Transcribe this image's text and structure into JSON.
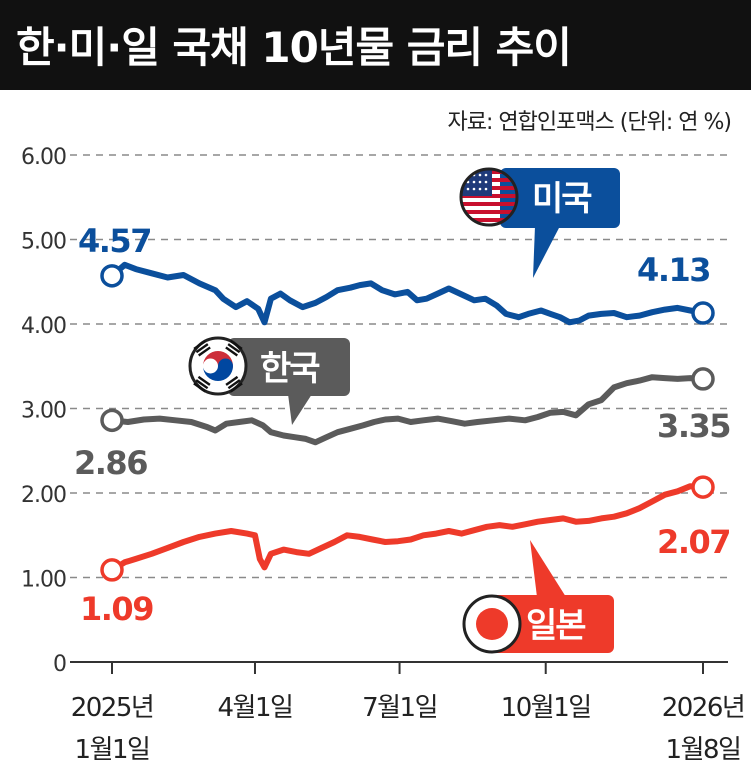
{
  "title": "한·미·일 국채 10년물 금리 추이",
  "source": "자료: 연합인포맥스 (단위: 연 %)",
  "colors": {
    "us": "#0b4f9c",
    "kr": "#5b5b5b",
    "jp": "#ee3a2a",
    "header_bg": "#111111"
  },
  "chart_data": {
    "type": "line",
    "title": "한·미·일 국채 10년물 금리 추이",
    "ylim": [
      0,
      6
    ],
    "y_ticks": [
      "0",
      "1.00",
      "2.00",
      "3.00",
      "4.00",
      "5.00",
      "6.00"
    ],
    "x_range": [
      0,
      372
    ],
    "x_ticks": [
      {
        "x": 0,
        "line1": "2025년",
        "line2": "1월1일"
      },
      {
        "x": 90,
        "line1": "4월1일",
        "line2": ""
      },
      {
        "x": 181,
        "line1": "7월1일",
        "line2": ""
      },
      {
        "x": 273,
        "line1": "10월1일",
        "line2": ""
      },
      {
        "x": 372,
        "line1": "2026년",
        "line2": "1월8일"
      }
    ],
    "series": [
      {
        "key": "us",
        "name": "미국",
        "icon": "us-flag-icon",
        "start_label": "4.57",
        "end_label": "4.13",
        "points": [
          [
            0,
            4.57
          ],
          [
            8,
            4.7
          ],
          [
            15,
            4.65
          ],
          [
            25,
            4.6
          ],
          [
            35,
            4.55
          ],
          [
            45,
            4.58
          ],
          [
            55,
            4.48
          ],
          [
            65,
            4.4
          ],
          [
            70,
            4.3
          ],
          [
            78,
            4.2
          ],
          [
            85,
            4.27
          ],
          [
            92,
            4.18
          ],
          [
            96,
            4.02
          ],
          [
            100,
            4.3
          ],
          [
            106,
            4.36
          ],
          [
            112,
            4.28
          ],
          [
            120,
            4.2
          ],
          [
            128,
            4.25
          ],
          [
            135,
            4.32
          ],
          [
            142,
            4.4
          ],
          [
            150,
            4.43
          ],
          [
            156,
            4.46
          ],
          [
            163,
            4.48
          ],
          [
            170,
            4.4
          ],
          [
            178,
            4.35
          ],
          [
            186,
            4.38
          ],
          [
            192,
            4.28
          ],
          [
            198,
            4.3
          ],
          [
            205,
            4.36
          ],
          [
            212,
            4.42
          ],
          [
            220,
            4.35
          ],
          [
            228,
            4.28
          ],
          [
            235,
            4.3
          ],
          [
            242,
            4.22
          ],
          [
            248,
            4.12
          ],
          [
            256,
            4.08
          ],
          [
            262,
            4.12
          ],
          [
            270,
            4.16
          ],
          [
            276,
            4.12
          ],
          [
            282,
            4.08
          ],
          [
            288,
            4.02
          ],
          [
            294,
            4.04
          ],
          [
            300,
            4.1
          ],
          [
            308,
            4.12
          ],
          [
            316,
            4.13
          ],
          [
            324,
            4.08
          ],
          [
            332,
            4.1
          ],
          [
            340,
            4.14
          ],
          [
            348,
            4.17
          ],
          [
            356,
            4.19
          ],
          [
            364,
            4.16
          ],
          [
            372,
            4.13
          ]
        ]
      },
      {
        "key": "kr",
        "name": "한국",
        "icon": "korea-flag-icon",
        "start_label": "2.86",
        "end_label": "3.35",
        "points": [
          [
            0,
            2.86
          ],
          [
            10,
            2.84
          ],
          [
            20,
            2.87
          ],
          [
            30,
            2.88
          ],
          [
            40,
            2.86
          ],
          [
            50,
            2.84
          ],
          [
            60,
            2.78
          ],
          [
            65,
            2.74
          ],
          [
            72,
            2.82
          ],
          [
            80,
            2.84
          ],
          [
            88,
            2.86
          ],
          [
            95,
            2.8
          ],
          [
            100,
            2.72
          ],
          [
            108,
            2.68
          ],
          [
            115,
            2.66
          ],
          [
            122,
            2.64
          ],
          [
            128,
            2.6
          ],
          [
            135,
            2.66
          ],
          [
            142,
            2.72
          ],
          [
            150,
            2.76
          ],
          [
            158,
            2.8
          ],
          [
            165,
            2.84
          ],
          [
            172,
            2.87
          ],
          [
            180,
            2.88
          ],
          [
            188,
            2.84
          ],
          [
            196,
            2.86
          ],
          [
            205,
            2.88
          ],
          [
            214,
            2.85
          ],
          [
            222,
            2.82
          ],
          [
            230,
            2.84
          ],
          [
            240,
            2.86
          ],
          [
            250,
            2.88
          ],
          [
            260,
            2.86
          ],
          [
            268,
            2.9
          ],
          [
            276,
            2.95
          ],
          [
            284,
            2.96
          ],
          [
            292,
            2.92
          ],
          [
            300,
            3.05
          ],
          [
            308,
            3.1
          ],
          [
            316,
            3.25
          ],
          [
            324,
            3.3
          ],
          [
            332,
            3.33
          ],
          [
            340,
            3.37
          ],
          [
            348,
            3.36
          ],
          [
            356,
            3.35
          ],
          [
            364,
            3.36
          ],
          [
            372,
            3.35
          ]
        ]
      },
      {
        "key": "jp",
        "name": "일본",
        "icon": "japan-flag-icon",
        "start_label": "1.09",
        "end_label": "2.07",
        "points": [
          [
            0,
            1.09
          ],
          [
            8,
            1.18
          ],
          [
            15,
            1.22
          ],
          [
            25,
            1.28
          ],
          [
            35,
            1.35
          ],
          [
            45,
            1.42
          ],
          [
            55,
            1.48
          ],
          [
            65,
            1.52
          ],
          [
            75,
            1.55
          ],
          [
            85,
            1.52
          ],
          [
            90,
            1.5
          ],
          [
            93,
            1.22
          ],
          [
            96,
            1.12
          ],
          [
            100,
            1.28
          ],
          [
            108,
            1.33
          ],
          [
            116,
            1.3
          ],
          [
            124,
            1.28
          ],
          [
            132,
            1.35
          ],
          [
            140,
            1.42
          ],
          [
            148,
            1.5
          ],
          [
            156,
            1.48
          ],
          [
            164,
            1.45
          ],
          [
            172,
            1.42
          ],
          [
            180,
            1.43
          ],
          [
            188,
            1.45
          ],
          [
            196,
            1.5
          ],
          [
            204,
            1.52
          ],
          [
            212,
            1.55
          ],
          [
            220,
            1.52
          ],
          [
            228,
            1.56
          ],
          [
            236,
            1.6
          ],
          [
            244,
            1.62
          ],
          [
            252,
            1.6
          ],
          [
            260,
            1.63
          ],
          [
            268,
            1.66
          ],
          [
            276,
            1.68
          ],
          [
            284,
            1.7
          ],
          [
            292,
            1.66
          ],
          [
            300,
            1.67
          ],
          [
            308,
            1.7
          ],
          [
            316,
            1.72
          ],
          [
            324,
            1.76
          ],
          [
            332,
            1.82
          ],
          [
            340,
            1.9
          ],
          [
            348,
            1.98
          ],
          [
            356,
            2.02
          ],
          [
            364,
            2.08
          ],
          [
            372,
            2.07
          ]
        ]
      }
    ]
  }
}
